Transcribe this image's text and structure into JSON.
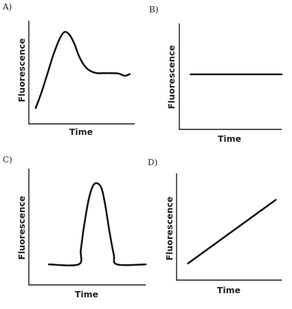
{
  "chart_data": [
    {
      "panel": "A)",
      "type": "line",
      "xlabel": "Time",
      "ylabel": "Fluorescence",
      "xlim": [
        0,
        10
      ],
      "ylim": [
        0,
        10
      ],
      "x": [
        0,
        0.6,
        1.2,
        1.8,
        2.4,
        2.9,
        3.4,
        3.9,
        4.3,
        4.7,
        5.1,
        5.6,
        6.2,
        6.8,
        7.6,
        8.4,
        9.0,
        9.5
      ],
      "y": [
        1.0,
        2.8,
        4.9,
        7.0,
        8.7,
        9.5,
        9.2,
        8.2,
        7.0,
        6.1,
        5.5,
        5.1,
        4.9,
        4.9,
        4.9,
        4.85,
        4.6,
        4.8
      ]
    },
    {
      "panel": "B)",
      "type": "line",
      "xlabel": "Time",
      "ylabel": "Fluorescence",
      "xlim": [
        0,
        10
      ],
      "ylim": [
        0,
        10
      ],
      "x": [
        0.8,
        10.0
      ],
      "y": [
        5.0,
        5.0
      ]
    },
    {
      "panel": "C)",
      "type": "line",
      "xlabel": "Time",
      "ylabel": "Fluorescence",
      "xlim": [
        0,
        10
      ],
      "ylim": [
        0,
        10
      ],
      "x": [
        1.2,
        3.9,
        4.1,
        4.4,
        4.8,
        5.2,
        5.6,
        6.0,
        6.35,
        6.7,
        7.1,
        7.4,
        10.0
      ],
      "y": [
        0.9,
        0.9,
        2.5,
        5.2,
        8.0,
        9.6,
        9.9,
        9.3,
        7.3,
        4.6,
        2.0,
        0.9,
        0.9
      ]
    },
    {
      "panel": "D)",
      "type": "line",
      "xlabel": "Time",
      "ylabel": "Fluorescence",
      "xlim": [
        0,
        10
      ],
      "ylim": [
        0,
        10
      ],
      "x": [
        0.6,
        9.4
      ],
      "y": [
        1.5,
        8.0
      ]
    }
  ]
}
